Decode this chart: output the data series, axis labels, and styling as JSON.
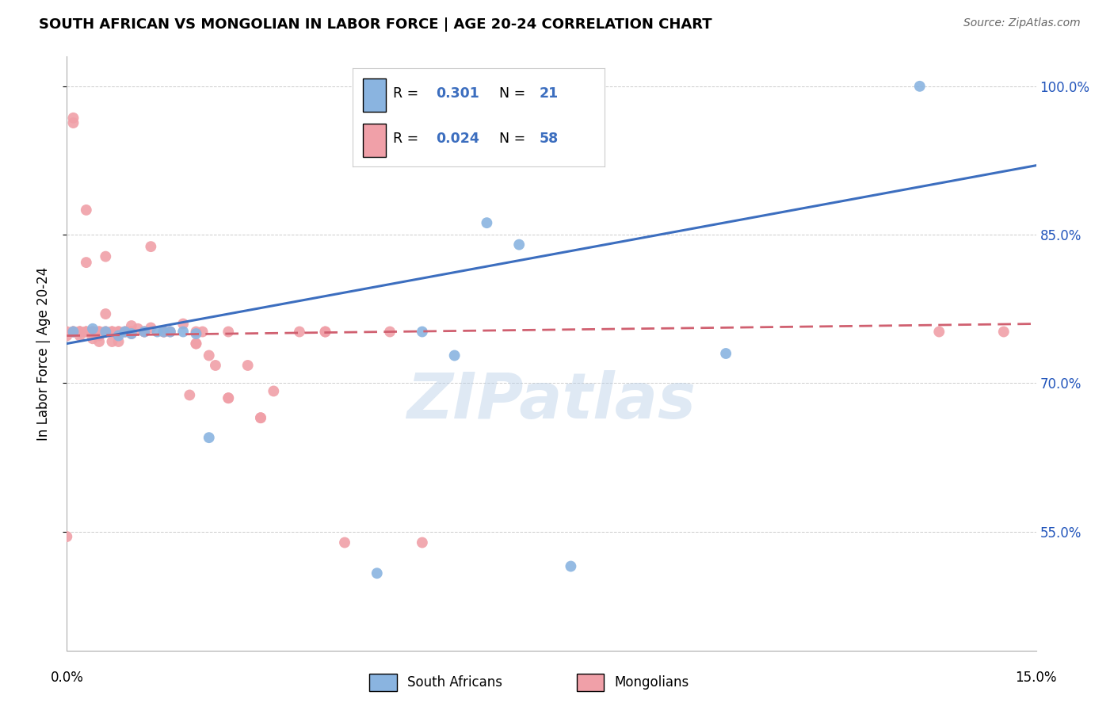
{
  "title": "SOUTH AFRICAN VS MONGOLIAN IN LABOR FORCE | AGE 20-24 CORRELATION CHART",
  "source": "Source: ZipAtlas.com",
  "ylabel": "In Labor Force | Age 20-24",
  "yticks_labels": [
    "100.0%",
    "85.0%",
    "70.0%",
    "55.0%"
  ],
  "ytick_vals": [
    1.0,
    0.85,
    0.7,
    0.55
  ],
  "xlim": [
    0.0,
    0.15
  ],
  "ylim": [
    0.43,
    1.03
  ],
  "blue_R": "0.301",
  "blue_N": "21",
  "pink_R": "0.024",
  "pink_N": "58",
  "blue_color": "#8ab4e0",
  "pink_color": "#f0a0a8",
  "blue_line_color": "#3c6ebf",
  "pink_line_color": "#d06070",
  "watermark": "ZIPatlas",
  "sa_x": [
    0.001,
    0.004,
    0.006,
    0.008,
    0.009,
    0.01,
    0.012,
    0.014,
    0.015,
    0.016,
    0.018,
    0.02,
    0.022,
    0.048,
    0.055,
    0.06,
    0.065,
    0.07,
    0.078,
    0.102,
    0.132
  ],
  "sa_y": [
    0.752,
    0.755,
    0.752,
    0.748,
    0.752,
    0.75,
    0.752,
    0.752,
    0.752,
    0.752,
    0.752,
    0.75,
    0.645,
    0.508,
    0.752,
    0.728,
    0.862,
    0.84,
    0.515,
    0.73,
    1.0
  ],
  "mg_x": [
    0.001,
    0.001,
    0.002,
    0.002,
    0.003,
    0.003,
    0.004,
    0.004,
    0.005,
    0.005,
    0.005,
    0.006,
    0.006,
    0.007,
    0.007,
    0.008,
    0.008,
    0.009,
    0.01,
    0.01,
    0.011,
    0.012,
    0.013,
    0.013,
    0.015,
    0.016,
    0.018,
    0.019,
    0.02,
    0.021,
    0.022,
    0.023,
    0.025,
    0.028,
    0.03,
    0.032,
    0.036,
    0.001,
    0.002,
    0.003,
    0.004,
    0.005,
    0.0,
    0.0,
    0.001,
    0.002,
    0.003,
    0.006,
    0.007,
    0.008,
    0.01,
    0.012,
    0.015,
    0.02,
    0.025,
    0.03,
    0.04,
    0.05
  ],
  "mg_y": [
    0.968,
    0.963,
    0.752,
    0.748,
    0.875,
    0.822,
    0.752,
    0.745,
    0.752,
    0.748,
    0.742,
    0.828,
    0.77,
    0.752,
    0.742,
    0.752,
    0.742,
    0.752,
    0.758,
    0.75,
    0.755,
    0.752,
    0.838,
    0.756,
    0.752,
    0.752,
    0.76,
    0.688,
    0.74,
    0.752,
    0.728,
    0.718,
    0.685,
    0.718,
    0.665,
    0.692,
    0.752,
    0.752,
    0.752,
    0.752,
    0.752,
    0.752,
    0.752,
    0.748,
    0.752,
    0.752,
    0.752,
    0.752,
    0.752,
    0.752,
    0.752,
    0.752,
    0.752,
    0.74,
    0.685,
    0.665,
    0.752,
    0.752
  ],
  "mg_x_extra": [
    0.0,
    0.001,
    0.002,
    0.003,
    0.004,
    0.005,
    0.006,
    0.007,
    0.008,
    0.009,
    0.01,
    0.015,
    0.02,
    0.025,
    0.04,
    0.043,
    0.055,
    0.135,
    0.145
  ],
  "mg_y_extra": [
    0.545,
    0.752,
    0.752,
    0.752,
    0.752,
    0.752,
    0.752,
    0.752,
    0.752,
    0.752,
    0.752,
    0.752,
    0.752,
    0.752,
    0.752,
    0.539,
    0.539,
    0.752,
    0.752
  ]
}
